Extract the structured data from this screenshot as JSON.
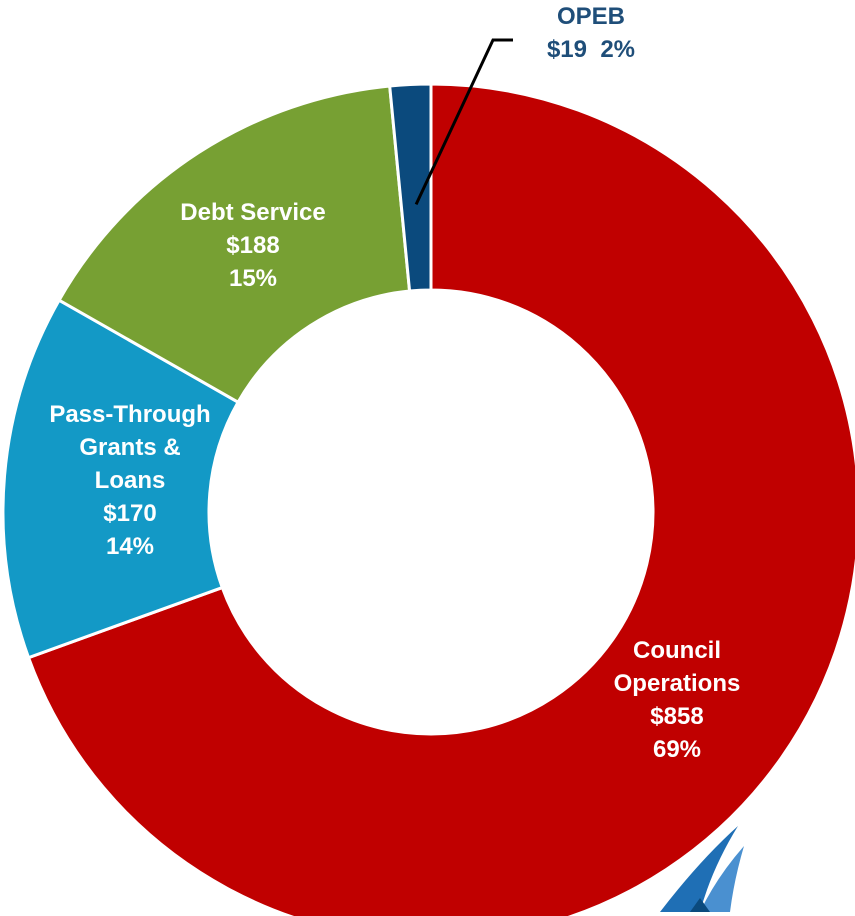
{
  "chart_data": {
    "type": "pie",
    "variant": "donut",
    "unit": "$",
    "slices": [
      {
        "name": "Council Operations",
        "value": 858,
        "percent": 69,
        "color": "#C00000",
        "label_lines": [
          "Council",
          "Operations",
          "$858",
          "69%"
        ],
        "label_color": "#FFFFFF"
      },
      {
        "name": "Pass-Through Grants & Loans",
        "value": 170,
        "percent": 14,
        "color": "#1399C6",
        "label_lines": [
          "Pass-Through",
          "Grants &",
          "Loans",
          "$170",
          "14%"
        ],
        "label_color": "#FFFFFF"
      },
      {
        "name": "Debt Service",
        "value": 188,
        "percent": 15,
        "color": "#77A033",
        "label_lines": [
          "Debt Service",
          "$188",
          "15%"
        ],
        "label_color": "#FFFFFF"
      },
      {
        "name": "OPEB",
        "value": 19,
        "percent": 2,
        "color": "#0B4A7D",
        "label_lines": [
          "OPEB",
          "$19  2%"
        ],
        "label_color": "#1F4E79"
      }
    ]
  }
}
